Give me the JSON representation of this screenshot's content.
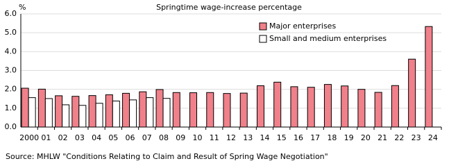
{
  "chart_data": {
    "type": "bar",
    "title": "Springtime wage-increase percentage",
    "y_unit": "%",
    "source": "Source: MHLW \"Conditions  Relating to Claim and Result of Spring Wage Negotiation\"",
    "categories": [
      "2000",
      "01",
      "02",
      "03",
      "04",
      "05",
      "06",
      "07",
      "08",
      "09",
      "10",
      "11",
      "12",
      "13",
      "14",
      "15",
      "16",
      "17",
      "18",
      "19",
      "20",
      "21",
      "22",
      "23",
      "24"
    ],
    "series": [
      {
        "name": "Major enterprises",
        "color": "#f0808a",
        "values": [
          2.06,
          2.01,
          1.66,
          1.63,
          1.67,
          1.71,
          1.79,
          1.87,
          1.99,
          1.83,
          1.82,
          1.83,
          1.78,
          1.8,
          2.19,
          2.38,
          2.14,
          2.11,
          2.26,
          2.18,
          2.0,
          1.84,
          2.2,
          3.6,
          5.33
        ]
      },
      {
        "name": "Small and medium enterprises",
        "color": "#ffffff",
        "values": [
          1.56,
          1.51,
          1.18,
          1.15,
          1.26,
          1.38,
          1.44,
          1.56,
          1.52,
          null,
          null,
          null,
          null,
          null,
          null,
          null,
          null,
          null,
          null,
          null,
          null,
          null,
          null,
          null,
          null
        ]
      }
    ],
    "ylim": [
      0,
      6
    ],
    "yticks": [
      {
        "value": 0,
        "label": "0.0"
      },
      {
        "value": 1,
        "label": "1.0"
      },
      {
        "value": 2,
        "label": "2.0"
      },
      {
        "value": 3,
        "label": "3.0"
      },
      {
        "value": 4,
        "label": "4.0"
      },
      {
        "value": 5,
        "label": "5.0"
      },
      {
        "value": 6,
        "label": "6.0"
      }
    ],
    "grid": true,
    "legend_position": "top-right"
  }
}
